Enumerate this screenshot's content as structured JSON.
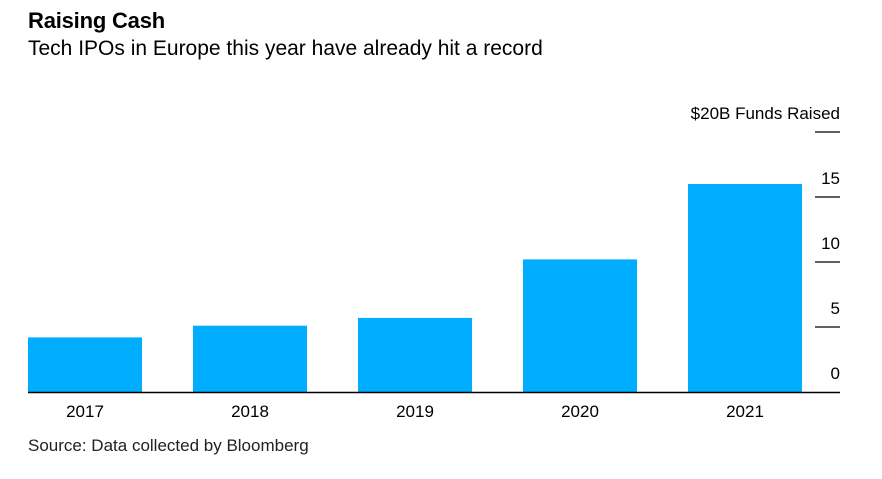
{
  "title": "Raising Cash",
  "subtitle": "Tech IPOs in Europe this year have already hit a record",
  "source": "Source: Data collected by Bloomberg",
  "chart_data": {
    "type": "bar",
    "categories": [
      "2017",
      "2018",
      "2019",
      "2020",
      "2021"
    ],
    "values": [
      4.2,
      5.1,
      5.7,
      10.2,
      16.0
    ],
    "title": "Raising Cash",
    "subtitle": "Tech IPOs in Europe this year have already hit a record",
    "xlabel": "",
    "ylabel": "Funds Raised",
    "ylim": [
      0,
      20
    ],
    "y_ticks": [
      0,
      5,
      10,
      15,
      20
    ],
    "y_tick_labels": [
      "0",
      "5",
      "10",
      "15",
      "$20B Funds Raised"
    ],
    "bar_color": "#00adfe",
    "axis_position": "right",
    "grid": false
  }
}
